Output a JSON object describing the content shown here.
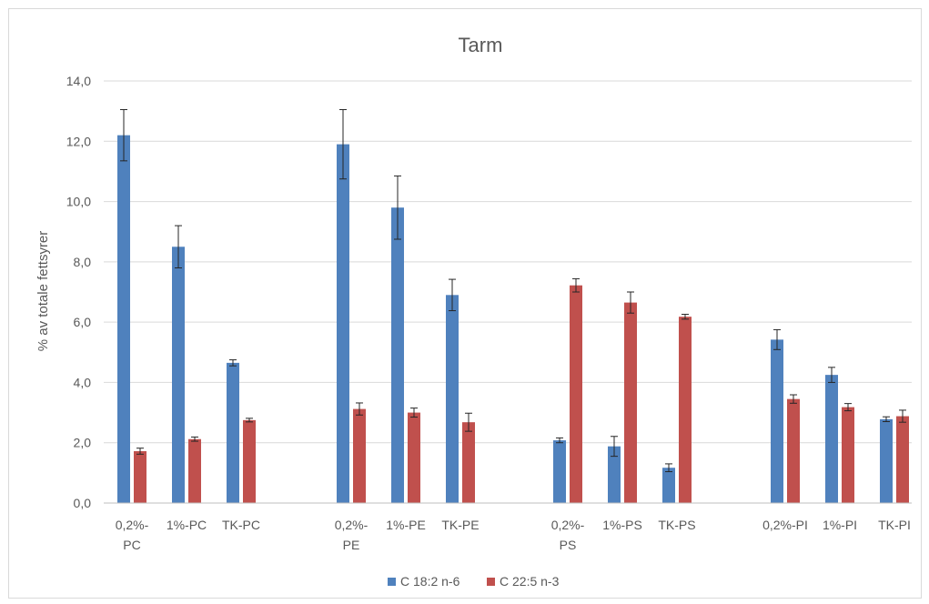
{
  "chart_data": {
    "type": "bar",
    "title": "Tarm",
    "xlabel": "",
    "ylabel": "% av totale fettsyrer",
    "ylim": [
      0,
      14
    ],
    "yticks": [
      "0,0",
      "2,0",
      "4,0",
      "6,0",
      "8,0",
      "10,0",
      "12,0",
      "14,0"
    ],
    "grid": true,
    "legend_position": "bottom",
    "categories": [
      "0,2%-PC",
      "1%-PC",
      "TK-PC",
      "0,2%-PE",
      "1%-PE",
      "TK-PE",
      "0,2%-PS",
      "1%-PS",
      "TK-PS",
      "0,2%-PI",
      "1%-PI",
      "TK-PI"
    ],
    "category_label_lines": [
      [
        "0,2%-",
        "PC"
      ],
      [
        "1%-PC"
      ],
      [
        "TK-PC"
      ],
      [
        "0,2%-",
        "PE"
      ],
      [
        "1%-PE"
      ],
      [
        "TK-PE"
      ],
      [
        "0,2%-",
        "PS"
      ],
      [
        "1%-PS"
      ],
      [
        "TK-PS"
      ],
      [
        "0,2%-PI"
      ],
      [
        "1%-PI"
      ],
      [
        "TK-PI"
      ]
    ],
    "groups": [
      [
        0,
        1,
        2
      ],
      [
        3,
        4,
        5
      ],
      [
        6,
        7,
        8
      ],
      [
        9,
        10,
        11
      ]
    ],
    "series": [
      {
        "name": "C 18:2 n-6",
        "color": "#4f81bd",
        "values": [
          12.2,
          8.5,
          4.65,
          11.9,
          9.8,
          6.9,
          2.08,
          1.88,
          1.17,
          5.42,
          4.25,
          2.78
        ],
        "errors": [
          0.85,
          0.7,
          0.1,
          1.15,
          1.05,
          0.52,
          0.08,
          0.33,
          0.13,
          0.33,
          0.25,
          0.08
        ]
      },
      {
        "name": "C 22:5 n-3",
        "color": "#c0504d",
        "values": [
          1.72,
          2.12,
          2.75,
          3.12,
          3.0,
          2.68,
          7.22,
          6.65,
          6.18,
          3.45,
          3.18,
          2.88
        ],
        "errors": [
          0.1,
          0.07,
          0.06,
          0.2,
          0.15,
          0.3,
          0.22,
          0.35,
          0.08,
          0.14,
          0.12,
          0.2
        ]
      }
    ]
  }
}
